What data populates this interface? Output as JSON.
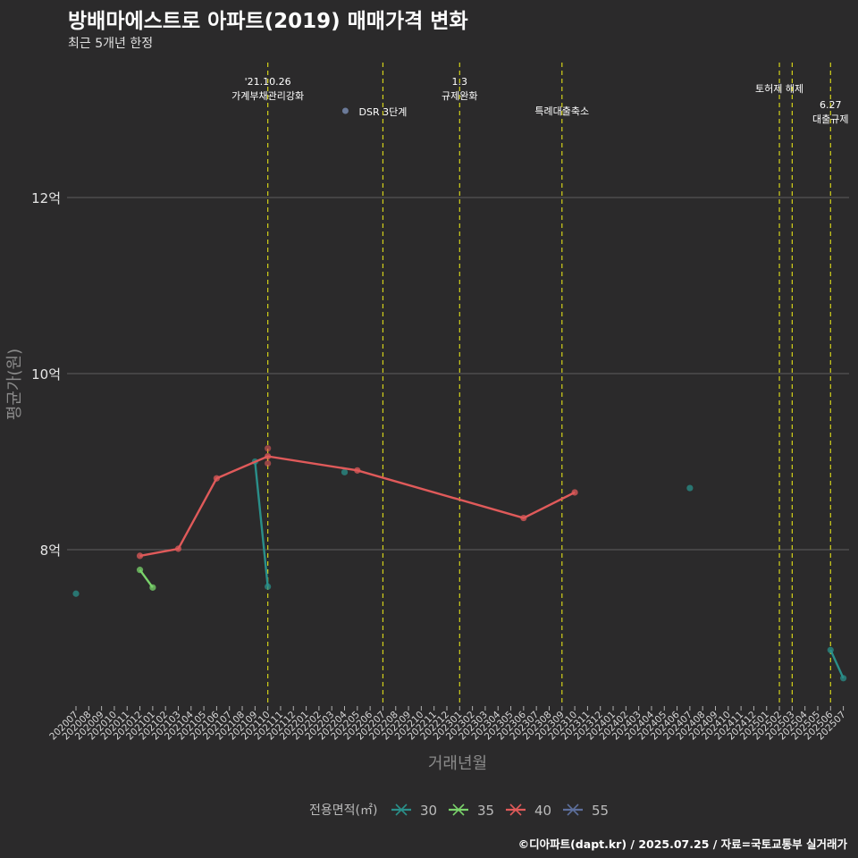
{
  "title": "방배마에스트로 아파트(2019) 매매가격 변화",
  "subtitle": "최근 5개년 한정",
  "caption": "©디아파트(dapt.kr) / 2025.07.25 / 자료=국토교통부 실거래가",
  "chart_data": {
    "type": "line",
    "title": "방배마에스트로 아파트(2019) 매매가격 변화",
    "subtitle": "최근 5개년 한정",
    "xlabel": "거래년월",
    "ylabel": "평균가(원)",
    "ylim": [
      6.2,
      13.6
    ],
    "yticks": [
      8,
      10,
      12
    ],
    "ytick_suffix": "억",
    "months": [
      "202007",
      "202008",
      "202009",
      "202010",
      "202011",
      "202012",
      "202101",
      "202102",
      "202103",
      "202104",
      "202105",
      "202106",
      "202107",
      "202108",
      "202109",
      "202110",
      "202111",
      "202112",
      "202201",
      "202202",
      "202203",
      "202204",
      "202205",
      "202206",
      "202207",
      "202208",
      "202209",
      "202210",
      "202211",
      "202212",
      "202301",
      "202302",
      "202303",
      "202304",
      "202305",
      "202306",
      "202307",
      "202308",
      "202309",
      "202310",
      "202311",
      "202312",
      "202401",
      "202402",
      "202403",
      "202404",
      "202405",
      "202406",
      "202407",
      "202408",
      "202409",
      "202410",
      "202411",
      "202412",
      "202501",
      "202502",
      "202503",
      "202504",
      "202505",
      "202506",
      "202507"
    ],
    "legend_title": "전용면적(㎡)",
    "series": [
      {
        "name": "30",
        "color": "#2a8f8a",
        "points": [
          {
            "month": "202007",
            "value": 7.5,
            "connect": false
          },
          {
            "month": "202109",
            "value": 9.0,
            "connect": true
          },
          {
            "month": "202110",
            "value": 7.58,
            "connect": true
          },
          {
            "month": "202204",
            "value": 8.88,
            "connect": false
          },
          {
            "month": "202407",
            "value": 8.7,
            "connect": false
          },
          {
            "month": "202506",
            "value": 6.86,
            "connect": true
          },
          {
            "month": "202507",
            "value": 6.54,
            "connect": true
          }
        ]
      },
      {
        "name": "35",
        "color": "#7ad36b",
        "points": [
          {
            "month": "202012",
            "value": 7.77,
            "connect": true
          },
          {
            "month": "202101",
            "value": 7.57,
            "connect": true
          }
        ]
      },
      {
        "name": "40",
        "color": "#e05a5a",
        "points": [
          {
            "month": "202012",
            "value": 7.93,
            "connect": true
          },
          {
            "month": "202103",
            "value": 8.01,
            "connect": true
          },
          {
            "month": "202106",
            "value": 8.81,
            "connect": true
          },
          {
            "month": "202110",
            "value": 9.06,
            "connect": true
          },
          {
            "month": "202205",
            "value": 8.9,
            "connect": true
          },
          {
            "month": "202306",
            "value": 8.36,
            "connect": true
          },
          {
            "month": "202310",
            "value": 8.65,
            "connect": true
          }
        ],
        "extra_points": [
          {
            "month": "202110",
            "value": 9.15
          },
          {
            "month": "202110",
            "value": 8.98
          }
        ]
      },
      {
        "name": "55",
        "color": "#5d6f9c",
        "points": []
      }
    ],
    "events": [
      {
        "month": "202110",
        "lines": [
          "'21.10.26",
          "가계부채관리강화"
        ],
        "level": 0
      },
      {
        "month": "202207",
        "lines": [
          "DSR 3단계"
        ],
        "level": 2,
        "marker": true
      },
      {
        "month": "202301",
        "lines": [
          "1.3",
          "규제완화"
        ],
        "level": 0
      },
      {
        "month": "202309",
        "lines": [
          "특례대출축소"
        ],
        "level": 2
      },
      {
        "month": "202502",
        "lines": [
          "토허제 해제"
        ],
        "level": 1
      },
      {
        "month": "202503",
        "lines": [],
        "level": 1
      },
      {
        "month": "202506",
        "lines": [
          "6.27",
          "대출규제"
        ],
        "level": 3
      }
    ]
  }
}
